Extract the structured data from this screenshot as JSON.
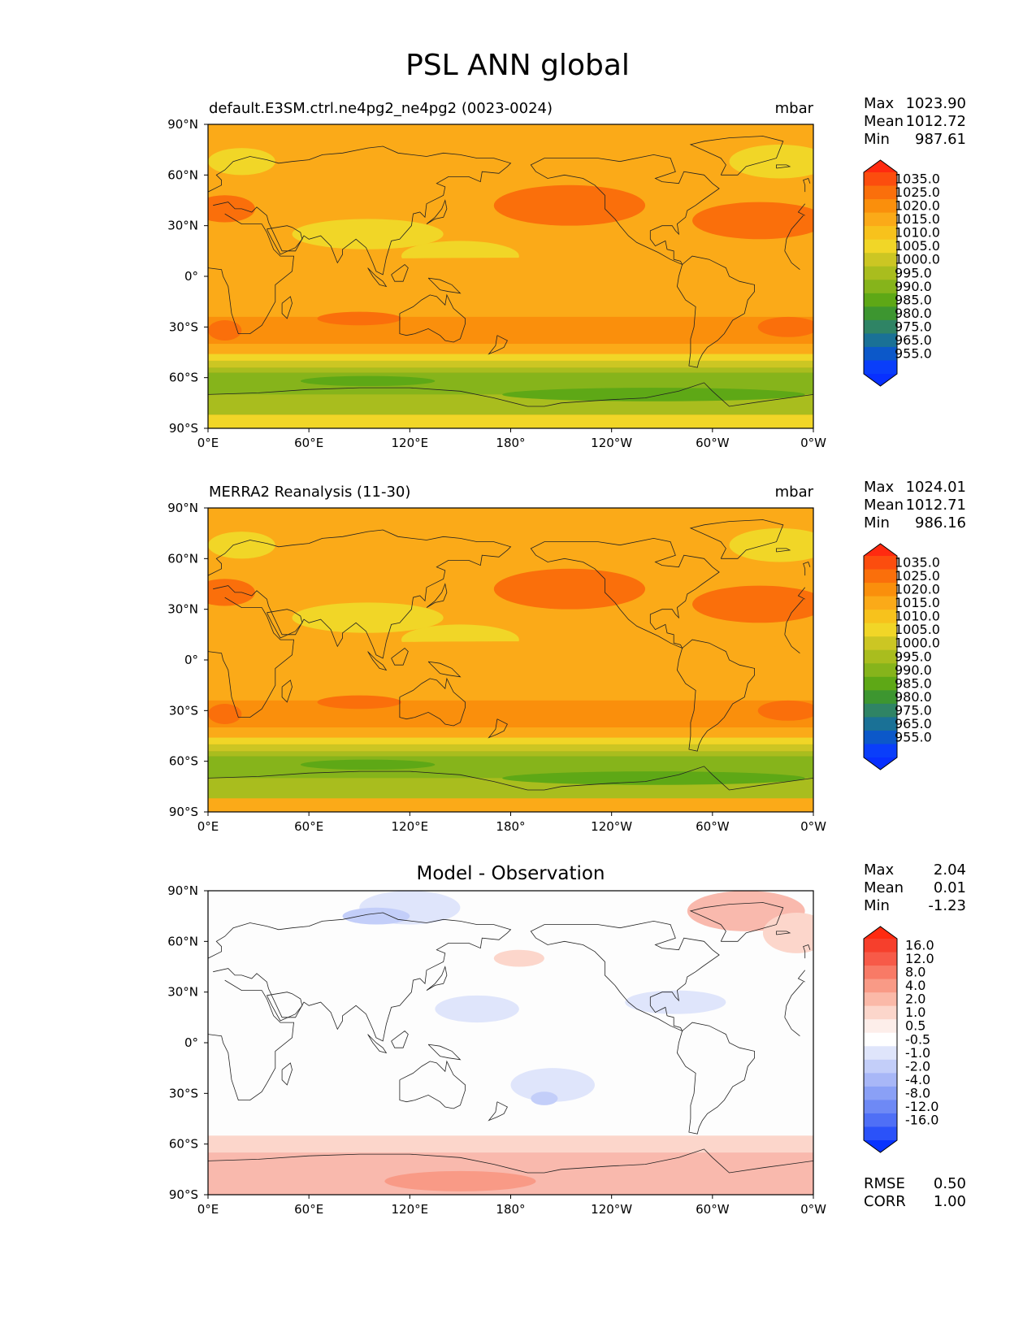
{
  "figure_title": "PSL ANN global",
  "panels": [
    {
      "id": "test",
      "left_title": "default.E3SM.ctrl.ne4pg2_ne4pg2 (0023-0024)",
      "right_title": "mbar",
      "center_title": "",
      "stats": [
        {
          "label": "Max",
          "value": "1023.90"
        },
        {
          "label": "Mean",
          "value": "1012.72"
        },
        {
          "label": "Min",
          "value": "987.61"
        }
      ],
      "colorbar_labels": [
        "1035.0",
        "1025.0",
        "1020.0",
        "1015.0",
        "1010.0",
        "1005.0",
        "1000.0",
        "995.0",
        "990.0",
        "985.0",
        "980.0",
        "975.0",
        "965.0",
        "955.0"
      ],
      "colorbar_colors": [
        "#ff2a10",
        "#fc4d0e",
        "#fa6f0b",
        "#fa8f0c",
        "#fbaa18",
        "#f7c21c",
        "#f1d627",
        "#ccc623",
        "#a9bd1e",
        "#86b41b",
        "#5ea816",
        "#3d9630",
        "#2f8465",
        "#1a7196",
        "#0c58c9",
        "#0a3efa",
        "#0830ff"
      ],
      "chart_data": {
        "type": "heatmap",
        "title": "default.E3SM.ctrl.ne4pg2_ne4pg2 (0023-0024)",
        "units": "mbar",
        "x_ticks": [
          "0°E",
          "60°E",
          "120°E",
          "180°",
          "120°W",
          "60°W",
          "0°W"
        ],
        "y_ticks": [
          "90°N",
          "60°N",
          "30°N",
          "0°",
          "30°S",
          "60°S",
          "90°S"
        ],
        "colorbar_levels": [
          955,
          965,
          975,
          980,
          985,
          990,
          995,
          1000,
          1005,
          1010,
          1015,
          1020,
          1025,
          1035
        ],
        "max": 1023.9,
        "mean": 1012.72,
        "min": 987.61
      }
    },
    {
      "id": "ref",
      "left_title": "MERRA2 Reanalysis (11-30)",
      "right_title": "mbar",
      "center_title": "",
      "stats": [
        {
          "label": "Max",
          "value": "1024.01"
        },
        {
          "label": "Mean",
          "value": "1012.71"
        },
        {
          "label": "Min",
          "value": "986.16"
        }
      ],
      "colorbar_labels": [
        "1035.0",
        "1025.0",
        "1020.0",
        "1015.0",
        "1010.0",
        "1005.0",
        "1000.0",
        "995.0",
        "990.0",
        "985.0",
        "980.0",
        "975.0",
        "965.0",
        "955.0"
      ],
      "colorbar_colors": [
        "#ff2a10",
        "#fc4d0e",
        "#fa6f0b",
        "#fa8f0c",
        "#fbaa18",
        "#f7c21c",
        "#f1d627",
        "#ccc623",
        "#a9bd1e",
        "#86b41b",
        "#5ea816",
        "#3d9630",
        "#2f8465",
        "#1a7196",
        "#0c58c9",
        "#0a3efa",
        "#0830ff"
      ],
      "chart_data": {
        "type": "heatmap",
        "title": "MERRA2 Reanalysis (11-30)",
        "units": "mbar",
        "x_ticks": [
          "0°E",
          "60°E",
          "120°E",
          "180°",
          "120°W",
          "60°W",
          "0°W"
        ],
        "y_ticks": [
          "90°N",
          "60°N",
          "30°N",
          "0°",
          "30°S",
          "60°S",
          "90°S"
        ],
        "colorbar_levels": [
          955,
          965,
          975,
          980,
          985,
          990,
          995,
          1000,
          1005,
          1010,
          1015,
          1020,
          1025,
          1035
        ],
        "max": 1024.01,
        "mean": 1012.71,
        "min": 986.16
      }
    },
    {
      "id": "diff",
      "left_title": "",
      "right_title": "",
      "center_title": "Model - Observation",
      "stats": [
        {
          "label": "Max",
          "value": "2.04"
        },
        {
          "label": "Mean",
          "value": "0.01"
        },
        {
          "label": "Min",
          "value": "-1.23"
        }
      ],
      "extra_stats": [
        {
          "label": "RMSE",
          "value": "0.50"
        },
        {
          "label": "CORR",
          "value": "1.00"
        }
      ],
      "colorbar_labels": [
        "16.0",
        "12.0",
        "8.0",
        "4.0",
        "2.0",
        "1.0",
        "0.5",
        "-0.5",
        "-1.0",
        "-2.0",
        "-4.0",
        "-8.0",
        "-12.0",
        "-16.0"
      ],
      "colorbar_colors": [
        "#ff2a10",
        "#f63f2c",
        "#f75a48",
        "#f87a66",
        "#f99a86",
        "#fbb9a8",
        "#fcd6cb",
        "#fdeeea",
        "#ffffff",
        "#dfe5fb",
        "#c3cef9",
        "#a8b7f7",
        "#8aa0f6",
        "#6e89f5",
        "#4f6ff6",
        "#2b52f9",
        "#0833ff"
      ],
      "chart_data": {
        "type": "heatmap",
        "title": "Model - Observation",
        "x_ticks": [
          "0°E",
          "60°E",
          "120°E",
          "180°",
          "120°W",
          "60°W",
          "0°W"
        ],
        "y_ticks": [
          "90°N",
          "60°N",
          "30°N",
          "0°",
          "30°S",
          "60°S",
          "90°S"
        ],
        "colorbar_levels": [
          -16,
          -12,
          -8,
          -4,
          -2,
          -1,
          -0.5,
          0.5,
          1,
          2,
          4,
          8,
          12,
          16
        ],
        "max": 2.04,
        "mean": 0.01,
        "min": -1.23,
        "rmse": 0.5,
        "corr": 1.0
      }
    }
  ],
  "colors": {
    "psl_base": "#fbaa18",
    "psl_high": "#fa8f0c",
    "psl_higher": "#fa6f0b",
    "psl_low": "#f1d627",
    "psl_green1": "#ccc623",
    "psl_green2": "#a9bd1e",
    "psl_green3": "#86b41b",
    "psl_green4": "#5ea816",
    "diff_neutral": "#fdfdfd",
    "diff_pos1": "#fcd6cb",
    "diff_pos2": "#f9b9ad",
    "diff_pos3": "#f99a86",
    "diff_neg1": "#dfe5fb",
    "diff_neg2": "#c3cef9",
    "diff_neg3": "#a8b7f7"
  }
}
